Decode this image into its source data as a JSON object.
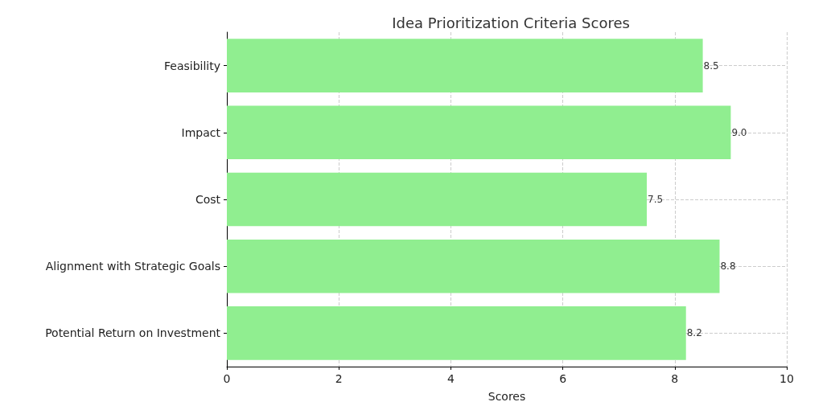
{
  "chart_data": {
    "type": "bar",
    "orientation": "horizontal",
    "title": "Idea Prioritization Criteria Scores",
    "xlabel": "Scores",
    "categories": [
      "Feasibility",
      "Impact",
      "Cost",
      "Alignment with Strategic Goals",
      "Potential Return on Investment"
    ],
    "values": [
      8.5,
      9.0,
      7.5,
      8.8,
      8.2
    ],
    "value_labels": [
      "8.5",
      "9.0",
      "7.5",
      "8.8",
      "8.2"
    ],
    "color": "#90ee90",
    "xlim": [
      0,
      10
    ],
    "xticks": [
      0,
      2,
      4,
      6,
      8,
      10
    ],
    "grid": true
  }
}
